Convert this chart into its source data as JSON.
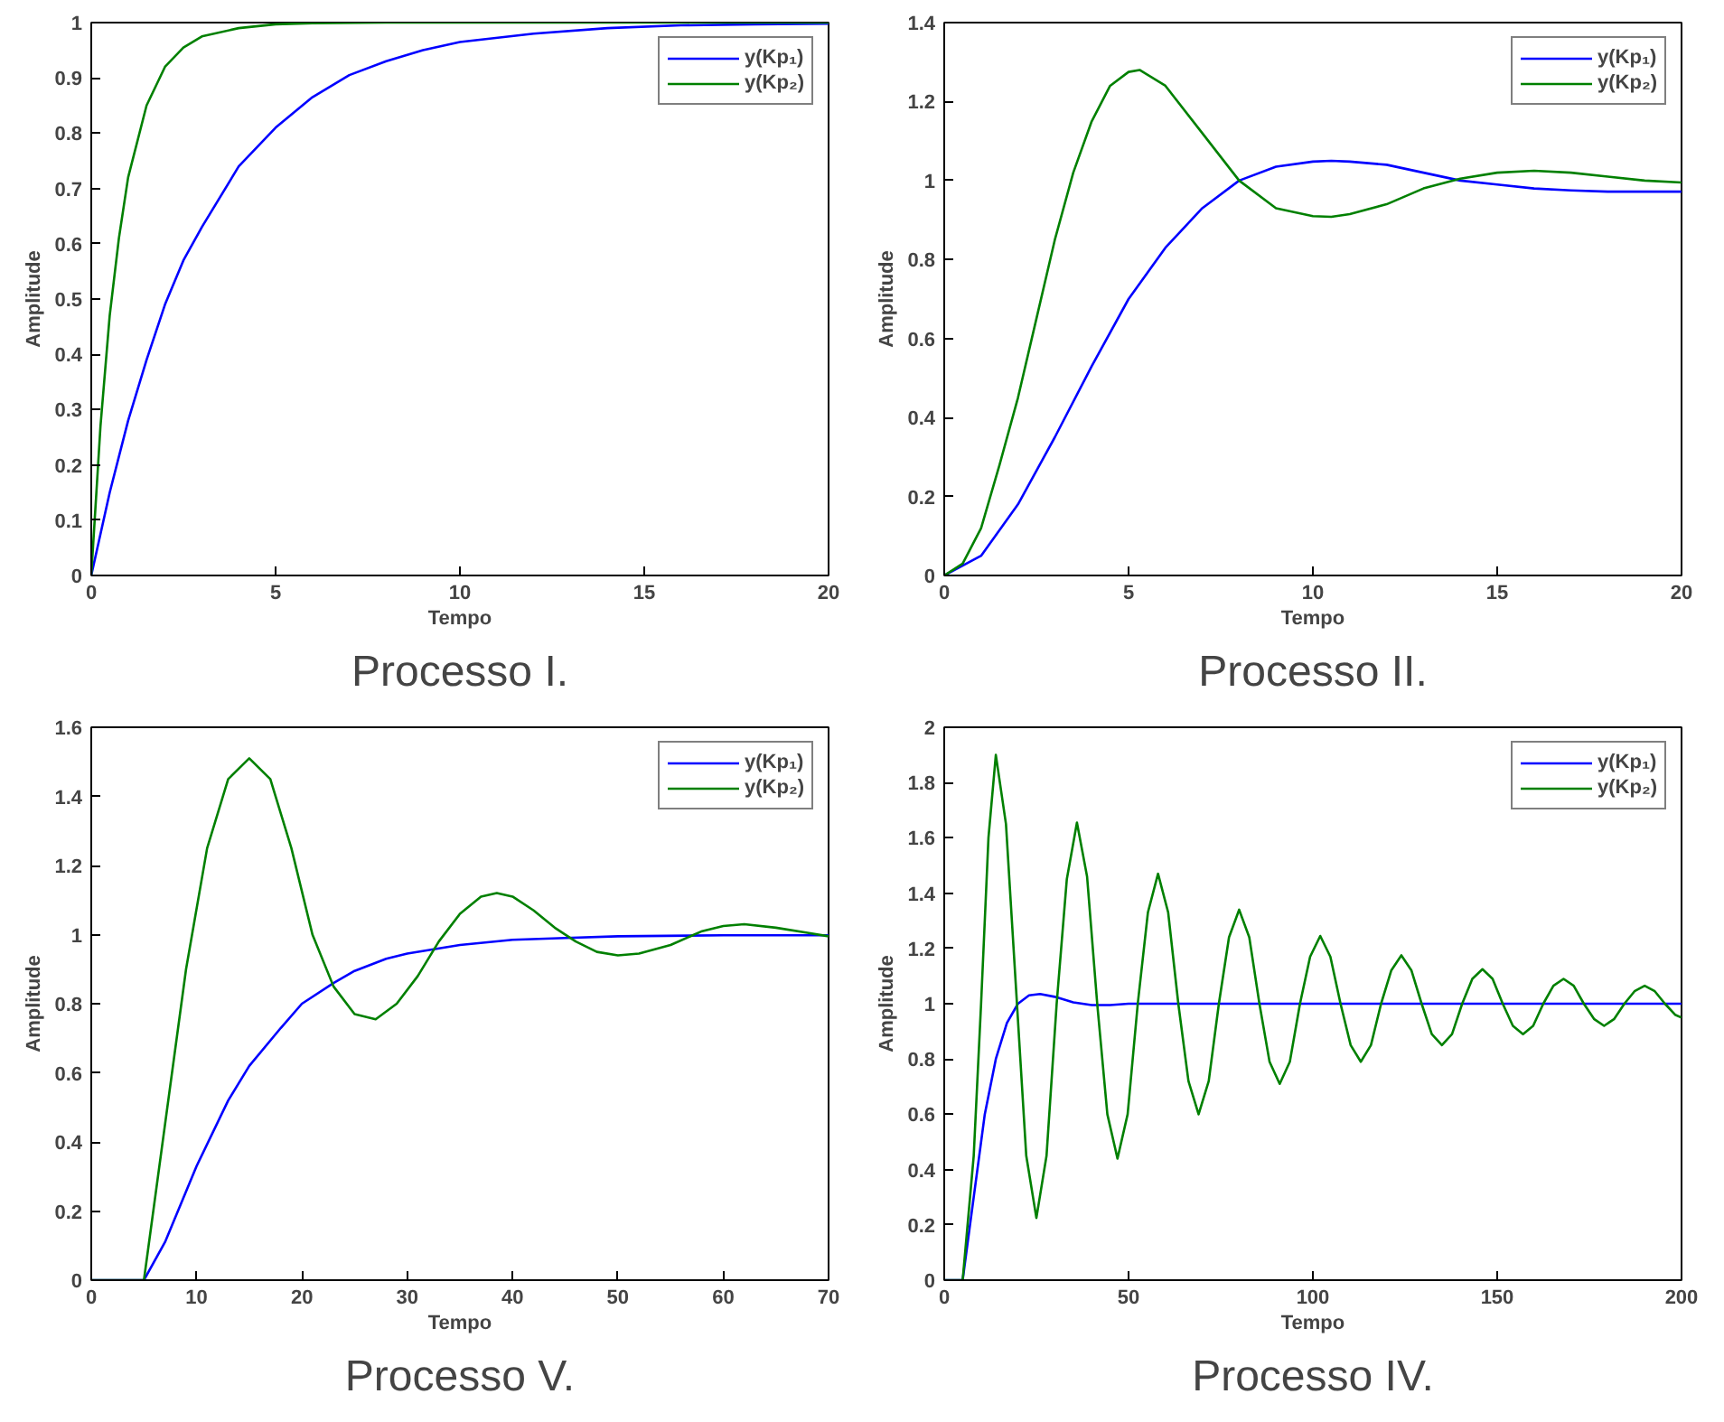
{
  "chart_data": [
    {
      "type": "line",
      "title": "Processo I.",
      "xlabel": "Tempo",
      "ylabel": "Amplitude",
      "xlim": [
        0,
        20
      ],
      "ylim": [
        0,
        1
      ],
      "xticks": [
        0,
        5,
        10,
        15,
        20
      ],
      "yticks": [
        0,
        0.1,
        0.2,
        0.3,
        0.4,
        0.5,
        0.6,
        0.7,
        0.8,
        0.9,
        1
      ],
      "grid": false,
      "legend": "top right",
      "series": [
        {
          "name": "y(Kp₁)",
          "color": "#0000ff",
          "x": [
            0,
            0.5,
            1,
            1.5,
            2,
            2.5,
            3,
            4,
            5,
            6,
            7,
            8,
            9,
            10,
            12,
            14,
            16,
            18,
            20
          ],
          "values": [
            0,
            0.15,
            0.28,
            0.39,
            0.49,
            0.57,
            0.63,
            0.74,
            0.81,
            0.865,
            0.905,
            0.93,
            0.95,
            0.965,
            0.98,
            0.99,
            0.995,
            0.997,
            0.998
          ]
        },
        {
          "name": "y(Kp₂)",
          "color": "#008000",
          "x": [
            0,
            0.25,
            0.5,
            0.75,
            1,
            1.5,
            2,
            2.5,
            3,
            4,
            5,
            6,
            8,
            10,
            15,
            20
          ],
          "values": [
            0,
            0.27,
            0.47,
            0.61,
            0.72,
            0.85,
            0.92,
            0.955,
            0.975,
            0.99,
            0.997,
            0.999,
            1,
            1,
            1,
            1
          ]
        }
      ]
    },
    {
      "type": "line",
      "title": "Processo II.",
      "xlabel": "Tempo",
      "ylabel": "Amplitude",
      "xlim": [
        0,
        20
      ],
      "ylim": [
        0,
        1.4
      ],
      "xticks": [
        0,
        5,
        10,
        15,
        20
      ],
      "yticks": [
        0,
        0.2,
        0.4,
        0.6,
        0.8,
        1,
        1.2,
        1.4
      ],
      "grid": false,
      "legend": "top right",
      "series": [
        {
          "name": "y(Kp₁)",
          "color": "#0000ff",
          "x": [
            0,
            1,
            2,
            3,
            4,
            5,
            6,
            7,
            8,
            9,
            10,
            10.5,
            11,
            12,
            13,
            14,
            15,
            16,
            17,
            18,
            19,
            20
          ],
          "values": [
            0,
            0.05,
            0.18,
            0.35,
            0.53,
            0.7,
            0.83,
            0.93,
            1.0,
            1.035,
            1.048,
            1.05,
            1.048,
            1.04,
            1.02,
            1.0,
            0.99,
            0.98,
            0.975,
            0.972,
            0.972,
            0.972
          ]
        },
        {
          "name": "y(Kp₂)",
          "color": "#008000",
          "x": [
            0,
            0.5,
            1,
            1.5,
            2,
            2.5,
            3,
            3.5,
            4,
            4.5,
            5,
            5.3,
            6,
            7,
            8,
            9,
            10,
            10.5,
            11,
            12,
            13,
            14,
            15,
            16,
            17,
            18,
            19,
            20
          ],
          "values": [
            0,
            0.03,
            0.12,
            0.28,
            0.45,
            0.65,
            0.85,
            1.02,
            1.15,
            1.24,
            1.275,
            1.28,
            1.24,
            1.12,
            1.0,
            0.93,
            0.91,
            0.908,
            0.915,
            0.94,
            0.98,
            1.005,
            1.02,
            1.025,
            1.02,
            1.01,
            1.0,
            0.995
          ]
        }
      ]
    },
    {
      "type": "line",
      "title": "Processo V.",
      "xlabel": "Tempo",
      "ylabel": "Amplitude",
      "xlim": [
        0,
        70
      ],
      "ylim": [
        0,
        1.6
      ],
      "xticks": [
        0,
        10,
        20,
        30,
        40,
        50,
        60,
        70
      ],
      "yticks": [
        0,
        0.2,
        0.4,
        0.6,
        0.8,
        1,
        1.2,
        1.4,
        1.6
      ],
      "grid": false,
      "legend": "top right",
      "series": [
        {
          "name": "y(Kp₁)",
          "color": "#0000ff",
          "x": [
            0,
            5,
            7,
            10,
            13,
            15,
            18,
            20,
            23,
            25,
            28,
            30,
            35,
            40,
            45,
            50,
            60,
            70
          ],
          "values": [
            0,
            0,
            0.11,
            0.33,
            0.52,
            0.62,
            0.73,
            0.8,
            0.86,
            0.895,
            0.93,
            0.945,
            0.97,
            0.985,
            0.99,
            0.995,
            0.998,
            0.998
          ]
        },
        {
          "name": "y(Kp₂)",
          "color": "#008000",
          "x": [
            0,
            5,
            7,
            9,
            11,
            13,
            15,
            17,
            19,
            21,
            23,
            25,
            27,
            29,
            31,
            33,
            35,
            37,
            38.5,
            40,
            42,
            44,
            46,
            48,
            50,
            52,
            55,
            58,
            60,
            62,
            65,
            68,
            70
          ],
          "values": [
            0,
            0,
            0.45,
            0.9,
            1.25,
            1.45,
            1.51,
            1.45,
            1.25,
            1.0,
            0.85,
            0.77,
            0.755,
            0.8,
            0.88,
            0.98,
            1.06,
            1.11,
            1.12,
            1.11,
            1.07,
            1.02,
            0.98,
            0.95,
            0.94,
            0.945,
            0.97,
            1.01,
            1.025,
            1.03,
            1.02,
            1.005,
            0.995
          ]
        }
      ]
    },
    {
      "type": "line",
      "title": "Processo IV.",
      "xlabel": "Tempo",
      "ylabel": "Amplitude",
      "xlim": [
        0,
        200
      ],
      "ylim": [
        0,
        2
      ],
      "xticks": [
        0,
        50,
        100,
        150,
        200
      ],
      "yticks": [
        0,
        0.2,
        0.4,
        0.6,
        0.8,
        1,
        1.2,
        1.4,
        1.6,
        1.8,
        2
      ],
      "grid": false,
      "legend": "top right",
      "series": [
        {
          "name": "y(Kp₁)",
          "color": "#0000ff",
          "x": [
            0,
            5,
            8,
            11,
            14,
            17,
            20,
            23,
            26,
            30,
            35,
            40,
            45,
            50,
            100,
            200
          ],
          "values": [
            0,
            0,
            0.3,
            0.6,
            0.8,
            0.93,
            1.0,
            1.03,
            1.035,
            1.025,
            1.005,
            0.995,
            0.995,
            1,
            1,
            1
          ]
        },
        {
          "name": "y(Kp₂)",
          "color": "#008000",
          "x": [
            0,
            5,
            8,
            10,
            12,
            14,
            16.75,
            19.5,
            22.25,
            25,
            27.75,
            30.5,
            33.25,
            36,
            38.75,
            41.5,
            44.25,
            47,
            49.75,
            52.5,
            55.25,
            58,
            60.75,
            63.5,
            66.25,
            69,
            71.75,
            74.5,
            77.25,
            80,
            82.75,
            85.5,
            88.25,
            91,
            93.75,
            96.5,
            99.25,
            102,
            104.75,
            107.5,
            110.25,
            113,
            115.75,
            118.5,
            121.25,
            124,
            126.75,
            129.5,
            132.25,
            135,
            137.75,
            140.5,
            143.25,
            146,
            148.75,
            151.5,
            154.25,
            157,
            159.75,
            162.5,
            165.25,
            168,
            170.75,
            173.5,
            176.25,
            179,
            181.75,
            184.5,
            187.25,
            190,
            192.75,
            195.5,
            198.25,
            200
          ],
          "values": [
            0,
            0,
            0.45,
            1.0,
            1.6,
            1.9,
            1.65,
            1.05,
            0.45,
            0.225,
            0.45,
            1.0,
            1.45,
            1.655,
            1.46,
            1.0,
            0.6,
            0.44,
            0.6,
            1.0,
            1.33,
            1.47,
            1.33,
            1.0,
            0.72,
            0.6,
            0.72,
            1.0,
            1.24,
            1.34,
            1.24,
            1.0,
            0.79,
            0.71,
            0.79,
            1.0,
            1.17,
            1.245,
            1.17,
            1.0,
            0.85,
            0.79,
            0.85,
            1.0,
            1.12,
            1.175,
            1.12,
            1.0,
            0.89,
            0.85,
            0.89,
            1.0,
            1.09,
            1.125,
            1.09,
            1.0,
            0.92,
            0.89,
            0.92,
            1.0,
            1.065,
            1.09,
            1.065,
            1.0,
            0.945,
            0.92,
            0.945,
            1.0,
            1.045,
            1.065,
            1.045,
            1.0,
            0.96,
            0.95
          ]
        }
      ]
    }
  ]
}
